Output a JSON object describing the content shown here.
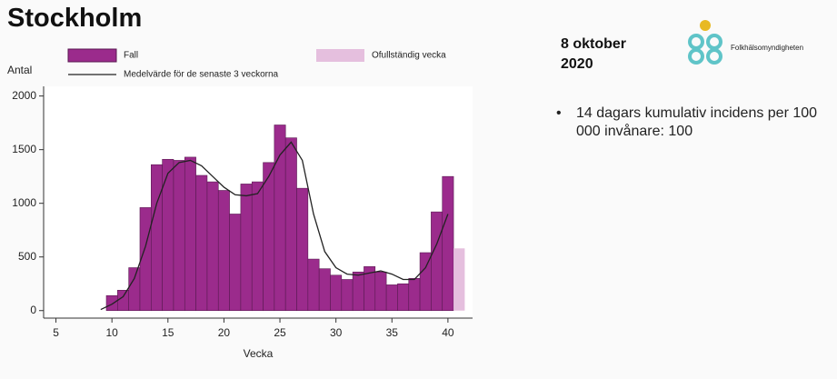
{
  "title": "Stockholm",
  "side": {
    "date_day": "8 oktober",
    "date_year": "2020",
    "logo_text": "Folkhälsomyndigheten",
    "bullet": "14 dagars kumulativ incidens per 100 000 invånare: 100"
  },
  "chart_data": {
    "type": "bar",
    "x_label": "Vecka",
    "y_label": "Antal",
    "xlim": [
      3.9,
      42.2
    ],
    "xticks": [
      5,
      10,
      15,
      20,
      25,
      30,
      35,
      40
    ],
    "ylim": [
      -70,
      2090
    ],
    "yticks": [
      0,
      500,
      1000,
      1500,
      2000
    ],
    "series": [
      {
        "name": "Fall",
        "type": "bar",
        "color": "#9b2b8c",
        "x": [
          10,
          11,
          12,
          13,
          14,
          15,
          16,
          17,
          18,
          19,
          20,
          21,
          22,
          23,
          24,
          25,
          26,
          27,
          28,
          29,
          30,
          31,
          32,
          33,
          34,
          35,
          36,
          37,
          38,
          39,
          40
        ],
        "values": [
          140,
          190,
          400,
          960,
          1360,
          1410,
          1400,
          1430,
          1260,
          1200,
          1120,
          900,
          1180,
          1200,
          1380,
          1730,
          1610,
          1140,
          480,
          390,
          330,
          290,
          360,
          410,
          360,
          240,
          250,
          300,
          540,
          920,
          1250
        ]
      },
      {
        "name": "Medelvärde för de senaste 3 veckorna",
        "type": "line",
        "color": "#222222",
        "x": [
          9,
          10,
          11,
          12,
          13,
          14,
          15,
          16,
          17,
          18,
          19,
          20,
          21,
          22,
          23,
          24,
          25,
          26,
          27,
          28,
          29,
          30,
          31,
          32,
          33,
          34,
          35,
          36,
          37,
          38,
          39,
          40
        ],
        "values": [
          10,
          60,
          130,
          300,
          600,
          1000,
          1280,
          1380,
          1400,
          1350,
          1250,
          1150,
          1080,
          1070,
          1090,
          1250,
          1450,
          1570,
          1400,
          900,
          550,
          400,
          340,
          330,
          350,
          370,
          340,
          290,
          290,
          400,
          620,
          900
        ]
      },
      {
        "name": "Ofullständig vecka",
        "type": "bar",
        "color": "#e5bfde",
        "x": [
          41
        ],
        "values": [
          580
        ]
      }
    ]
  }
}
